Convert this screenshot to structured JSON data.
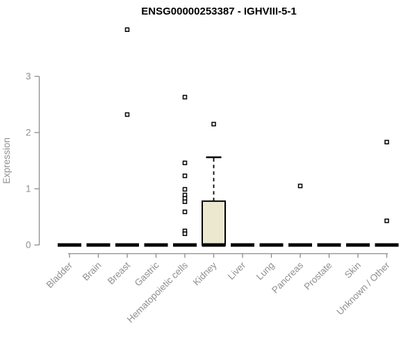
{
  "chart_data": {
    "type": "boxplot",
    "title": "ENSG00000253387 - IGHVIII-5-1",
    "xlabel": "",
    "ylabel": "Expression",
    "ylim": [
      0,
      3
    ],
    "yticks": [
      0,
      1,
      2,
      3
    ],
    "grid": false,
    "legend": "none",
    "categories": [
      "Bladder",
      "Brain",
      "Breast",
      "Gastric",
      "Hematopoietic cells",
      "Kidney",
      "Liver",
      "Lung",
      "Pancreas",
      "Prostate",
      "Skin",
      "Unknown / Other"
    ],
    "series": [
      {
        "category": "Bladder",
        "q1": 0,
        "median": 0,
        "q3": 0,
        "whisker_low": 0,
        "whisker_high": 0,
        "outliers": []
      },
      {
        "category": "Brain",
        "q1": 0,
        "median": 0,
        "q3": 0,
        "whisker_low": 0,
        "whisker_high": 0,
        "outliers": []
      },
      {
        "category": "Breast",
        "q1": 0,
        "median": 0,
        "q3": 0,
        "whisker_low": 0,
        "whisker_high": 0,
        "outliers": [
          3.83,
          2.32
        ]
      },
      {
        "category": "Gastric",
        "q1": 0,
        "median": 0,
        "q3": 0,
        "whisker_low": 0,
        "whisker_high": 0,
        "outliers": []
      },
      {
        "category": "Hematopoietic cells",
        "q1": 0,
        "median": 0,
        "q3": 0,
        "whisker_low": 0,
        "whisker_high": 0,
        "outliers": [
          2.63,
          1.46,
          1.23,
          0.99,
          0.89,
          0.83,
          0.77,
          0.59,
          0.25,
          0.2
        ]
      },
      {
        "category": "Kidney",
        "q1": 0,
        "median": 0,
        "q3": 0.78,
        "whisker_low": 0,
        "whisker_high": 1.56,
        "outliers": [
          2.15
        ]
      },
      {
        "category": "Liver",
        "q1": 0,
        "median": 0,
        "q3": 0,
        "whisker_low": 0,
        "whisker_high": 0,
        "outliers": []
      },
      {
        "category": "Lung",
        "q1": 0,
        "median": 0,
        "q3": 0,
        "whisker_low": 0,
        "whisker_high": 0,
        "outliers": []
      },
      {
        "category": "Pancreas",
        "q1": 0,
        "median": 0,
        "q3": 0,
        "whisker_low": 0,
        "whisker_high": 0,
        "outliers": [
          1.05
        ]
      },
      {
        "category": "Prostate",
        "q1": 0,
        "median": 0,
        "q3": 0,
        "whisker_low": 0,
        "whisker_high": 0,
        "outliers": []
      },
      {
        "category": "Skin",
        "q1": 0,
        "median": 0,
        "q3": 0,
        "whisker_low": 0,
        "whisker_high": 0,
        "outliers": []
      },
      {
        "category": "Unknown / Other",
        "q1": 0,
        "median": 0,
        "q3": 0,
        "whisker_low": 0,
        "whisker_high": 0,
        "outliers": [
          1.83,
          0.43
        ]
      }
    ],
    "colors": {
      "box_fill": "#ece8cf",
      "box_stroke": "#000000",
      "median": "#000000",
      "outlier_stroke": "#000000",
      "outlier_fill": "#ffffff",
      "axis": "#8c8c8c",
      "axis_text": "#8f8f8f",
      "title": "#000000",
      "background": "#ffffff"
    }
  }
}
